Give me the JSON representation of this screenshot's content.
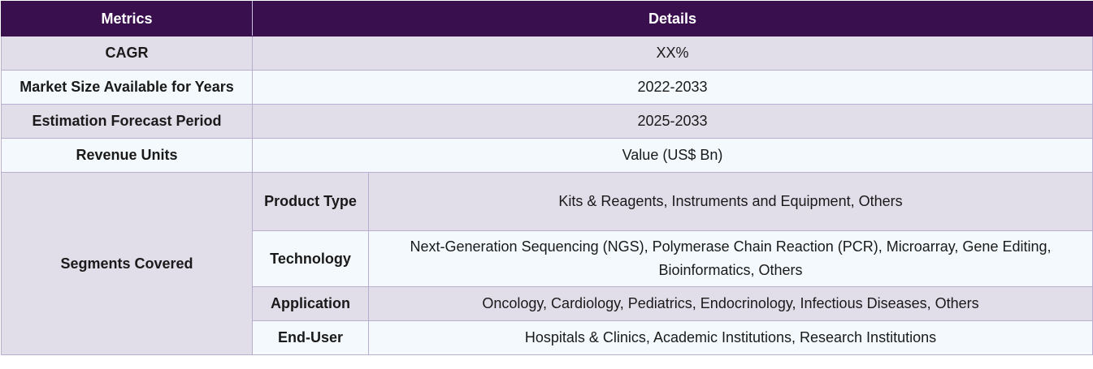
{
  "header": {
    "metrics": "Metrics",
    "details": "Details"
  },
  "rows": [
    {
      "metric": "CAGR",
      "detail": "XX%"
    },
    {
      "metric": "Market Size Available for Years",
      "detail": "2022-2033"
    },
    {
      "metric": "Estimation Forecast Period",
      "detail": "2025-2033"
    },
    {
      "metric": "Revenue Units",
      "detail": "Value (US$ Bn)"
    }
  ],
  "segments": {
    "label": "Segments Covered",
    "items": [
      {
        "name": "Product Type",
        "detail": "Kits & Reagents, Instruments and Equipment, Others"
      },
      {
        "name": "Technology",
        "detail": "Next-Generation Sequencing (NGS), Polymerase Chain Reaction (PCR), Microarray, Gene Editing, Bioinformatics, Others"
      },
      {
        "name": "Application",
        "detail": "Oncology, Cardiology, Pediatrics, Endocrinology, Infectious Diseases, Others"
      },
      {
        "name": "End-User",
        "detail": "Hospitals & Clinics, Academic Institutions, Research Institutions"
      }
    ]
  }
}
